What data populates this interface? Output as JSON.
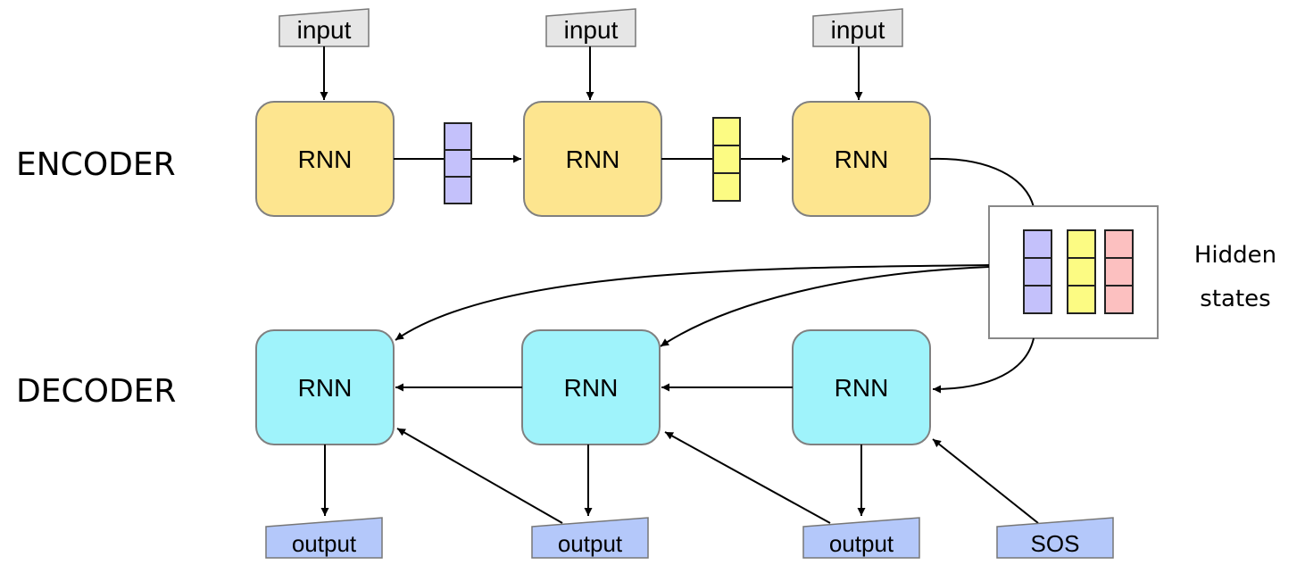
{
  "labels": {
    "encoder": "ENCODER",
    "decoder": "DECODER",
    "hidden_line1": "Hidden",
    "hidden_line2": "states"
  },
  "encoder": {
    "cells": [
      {
        "label": "RNN",
        "input": "input"
      },
      {
        "label": "RNN",
        "input": "input"
      },
      {
        "label": "RNN",
        "input": "input"
      }
    ]
  },
  "decoder": {
    "cells": [
      {
        "label": "RNN",
        "output": "output"
      },
      {
        "label": "RNN",
        "output": "output"
      },
      {
        "label": "RNN",
        "output": "output"
      }
    ],
    "start_token": "SOS"
  },
  "colors": {
    "encoder_cell": "#fde58f",
    "decoder_cell": "#9ff3fb",
    "input_box": "#e6e6e6",
    "output_box": "#b4c8fa",
    "state_purple": "#c4c1fb",
    "state_yellow": "#fcfb83",
    "state_pink": "#fcc0c0"
  }
}
